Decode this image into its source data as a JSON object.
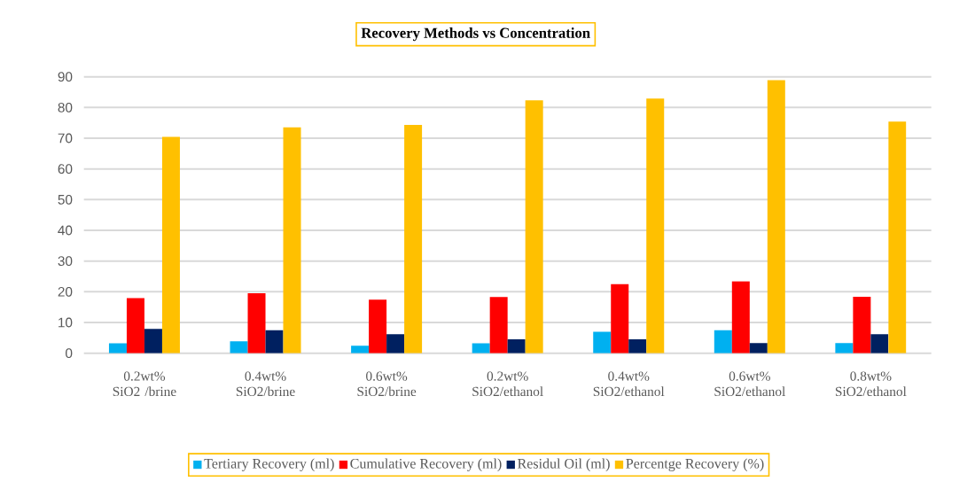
{
  "chart_data": {
    "type": "bar",
    "title": "Recovery Methods vs Concentration",
    "categories": [
      "0.2wt% SiO2 /brine",
      "0.4wt% SiO2/brine",
      "0.6wt% SiO2/brine",
      "0.2wt% SiO2/ethanol",
      "0.4wt% SiO2/ethanol",
      "0.6wt% SiO2/ethanol",
      "0.8wt% SiO2/ethanol"
    ],
    "series": [
      {
        "name": "Tertiary Recovery (ml)",
        "color": "#00b0f0",
        "values": [
          3.2,
          3.9,
          2.4,
          3.2,
          7.0,
          7.5,
          3.3
        ]
      },
      {
        "name": "Cumulative Recovery (ml)",
        "color": "#ff0000",
        "values": [
          17.9,
          19.5,
          17.4,
          18.3,
          22.5,
          23.4,
          18.4
        ]
      },
      {
        "name": "Residul Oil (ml)",
        "color": "#002060",
        "values": [
          7.9,
          7.5,
          6.2,
          4.5,
          4.5,
          3.3,
          6.2
        ]
      },
      {
        "name": "Percentge Recovery (%)",
        "color": "#ffc000",
        "values": [
          70.4,
          73.5,
          74.3,
          82.3,
          82.9,
          88.9,
          75.4
        ]
      }
    ],
    "ylim": [
      0,
      90
    ],
    "yticks": [
      0,
      10,
      20,
      30,
      40,
      50,
      60,
      70,
      80,
      90
    ],
    "grid": "y",
    "legend": "bottom"
  }
}
